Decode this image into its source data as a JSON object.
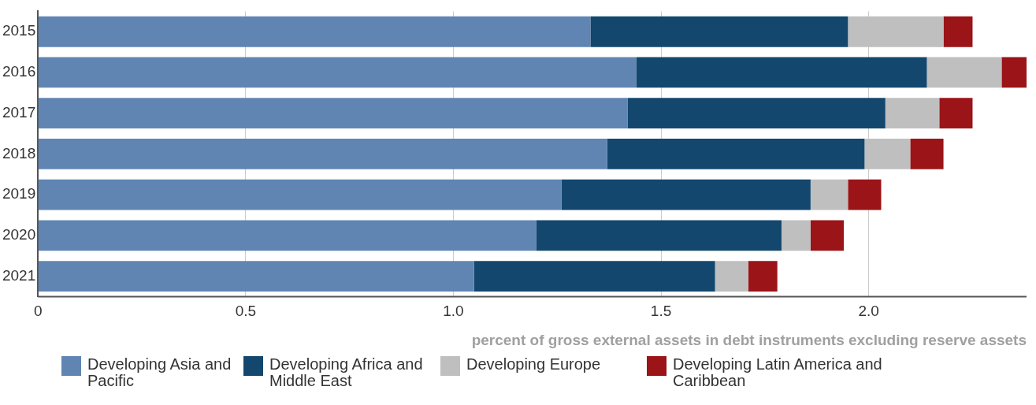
{
  "chart_data": {
    "type": "bar",
    "orientation": "horizontal",
    "stacked": true,
    "categories": [
      "2015",
      "2016",
      "2017",
      "2018",
      "2019",
      "2020",
      "2021"
    ],
    "xlabel": "percent of gross external assets in debt instruments excluding reserve assets",
    "xlim": [
      0,
      2.38
    ],
    "xticks": [
      {
        "value": 0,
        "label": "0"
      },
      0.5,
      {
        "value": 1,
        "label": "1.0"
      },
      1.5,
      {
        "value": 2,
        "label": "2.0"
      }
    ],
    "grid": "x",
    "legend": "bottom",
    "series": [
      {
        "name": "Developing Asia and Pacific",
        "color": "#6085b3",
        "values": [
          1.33,
          1.44,
          1.42,
          1.37,
          1.26,
          1.2,
          1.05
        ]
      },
      {
        "name": "Developing Africa and Middle East",
        "color": "#13476e",
        "values": [
          0.62,
          0.7,
          0.62,
          0.62,
          0.6,
          0.59,
          0.58
        ]
      },
      {
        "name": "Developing Europe",
        "color": "#bfbfbf",
        "values": [
          0.23,
          0.18,
          0.13,
          0.11,
          0.09,
          0.07,
          0.08
        ]
      },
      {
        "name": "Developing Latin America and Caribbean",
        "color": "#9a1418",
        "values": [
          0.07,
          0.06,
          0.08,
          0.08,
          0.08,
          0.08,
          0.07
        ]
      }
    ]
  }
}
